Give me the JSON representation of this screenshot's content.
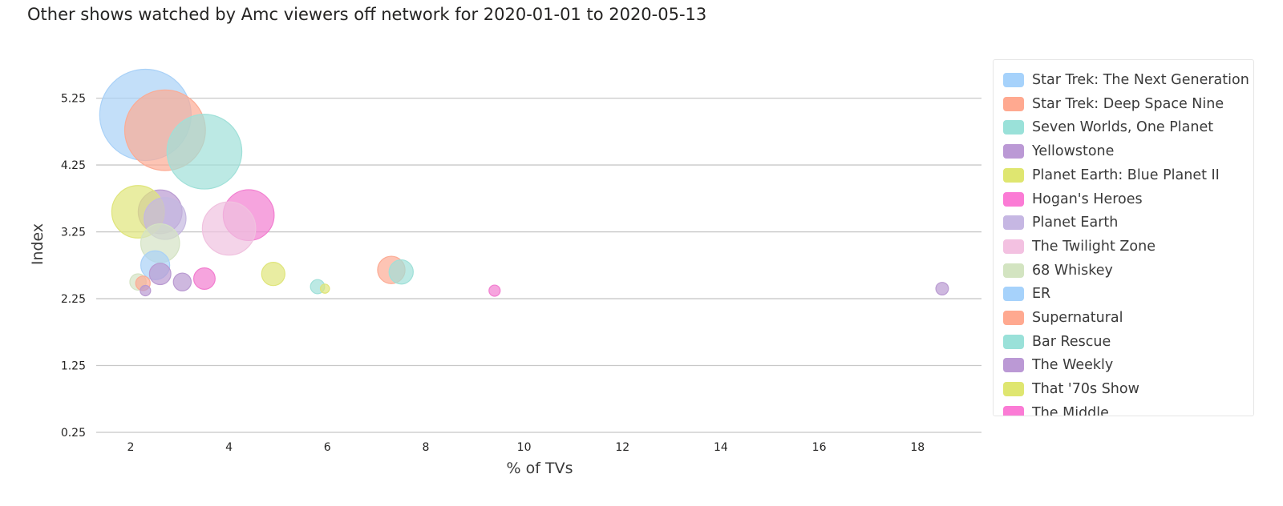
{
  "page": {
    "title": "Other shows watched by Amc viewers off network for 2020-01-01 to 2020-05-13"
  },
  "chart_data": {
    "type": "scatter",
    "variant": "bubble",
    "title": "Other shows watched by Amc viewers off network for 2020-01-01 to 2020-05-13",
    "xlabel": "% of TVs",
    "ylabel": "Index",
    "xlim": [
      1.3,
      19.3
    ],
    "ylim": [
      0.25,
      6.0
    ],
    "x_ticks": [
      2,
      4,
      6,
      8,
      10,
      12,
      14,
      16,
      18
    ],
    "y_ticks": [
      0.25,
      1.25,
      2.25,
      3.25,
      4.25,
      5.25
    ],
    "y_tick_labels": [
      "0.25",
      "1.25",
      "2.25",
      "3.25",
      "4.25",
      "5.25"
    ],
    "grid": "horizontal",
    "legend_position": "right",
    "colors": {
      "blue": "#a9d1f7",
      "salmon": "#fcab94",
      "teal": "#9fe0d8",
      "purple": "#b99ad1",
      "lime": "#dfe57a",
      "magenta": "#f27ed0",
      "lavender": "#c5b8e0",
      "pink": "#f0c2df",
      "sage": "#d4e3c4"
    },
    "series": [
      {
        "name": "Star Trek: The Next Generation",
        "color": "#a9d1f7",
        "x": 2.3,
        "y": 5.0,
        "size": 100
      },
      {
        "name": "Star Trek: Deep Space Nine",
        "color": "#fcab94",
        "x": 2.7,
        "y": 4.77,
        "size": 78
      },
      {
        "name": "Seven Worlds, One Planet",
        "color": "#9fe0d8",
        "x": 3.5,
        "y": 4.45,
        "size": 67
      },
      {
        "name": "Yellowstone",
        "color": "#b99ad1",
        "x": 2.6,
        "y": 3.55,
        "size": 23
      },
      {
        "name": "Planet Earth: Blue Planet II",
        "color": "#dfe57a",
        "x": 2.15,
        "y": 3.55,
        "size": 33
      },
      {
        "name": "Hogan's Heroes",
        "color": "#f27ed0",
        "x": 4.4,
        "y": 3.5,
        "size": 31
      },
      {
        "name": "Planet Earth",
        "color": "#c5b8e0",
        "x": 2.7,
        "y": 3.45,
        "size": 21
      },
      {
        "name": "The Twilight Zone",
        "color": "#f0c2df",
        "x": 4.0,
        "y": 3.3,
        "size": 34
      },
      {
        "name": "68 Whiskey",
        "color": "#d4e3c4",
        "x": 2.6,
        "y": 3.08,
        "size": 18
      },
      {
        "name": "ER",
        "color": "#a9d1f7",
        "x": 2.5,
        "y": 2.75,
        "size": 10
      },
      {
        "name": "Supernatural",
        "color": "#fcab94",
        "x": 7.3,
        "y": 2.68,
        "size": 9
      },
      {
        "name": "Bar Rescue",
        "color": "#9fe0d8",
        "x": 7.5,
        "y": 2.65,
        "size": 7
      },
      {
        "name": "The Weekly",
        "color": "#b99ad1",
        "x": 2.6,
        "y": 2.62,
        "size": 5.5
      },
      {
        "name": "That '70s Show",
        "color": "#dfe57a",
        "x": 4.9,
        "y": 2.62,
        "size": 6.5
      },
      {
        "name": "The Middle",
        "color": "#f27ed0",
        "x": 3.5,
        "y": 2.55,
        "size": 5.5
      },
      {
        "name": "",
        "color": "#b99ad1",
        "x": 3.05,
        "y": 2.5,
        "size": 3.8
      },
      {
        "name": "",
        "color": "#d4e3c4",
        "x": 2.15,
        "y": 2.5,
        "size": 3.2
      },
      {
        "name": "",
        "color": "#fcab94",
        "x": 2.25,
        "y": 2.48,
        "size": 2.5
      },
      {
        "name": "",
        "color": "#9fe0d8",
        "x": 5.8,
        "y": 2.43,
        "size": 2.4
      },
      {
        "name": "",
        "color": "#dfe57a",
        "x": 5.95,
        "y": 2.4,
        "size": 1.0
      },
      {
        "name": "",
        "color": "#b99ad1",
        "x": 2.3,
        "y": 2.37,
        "size": 1.3
      },
      {
        "name": "",
        "color": "#f27ed0",
        "x": 9.4,
        "y": 2.37,
        "size": 1.5
      },
      {
        "name": "",
        "color": "#b99ad1",
        "x": 18.5,
        "y": 2.4,
        "size": 1.9
      }
    ]
  }
}
